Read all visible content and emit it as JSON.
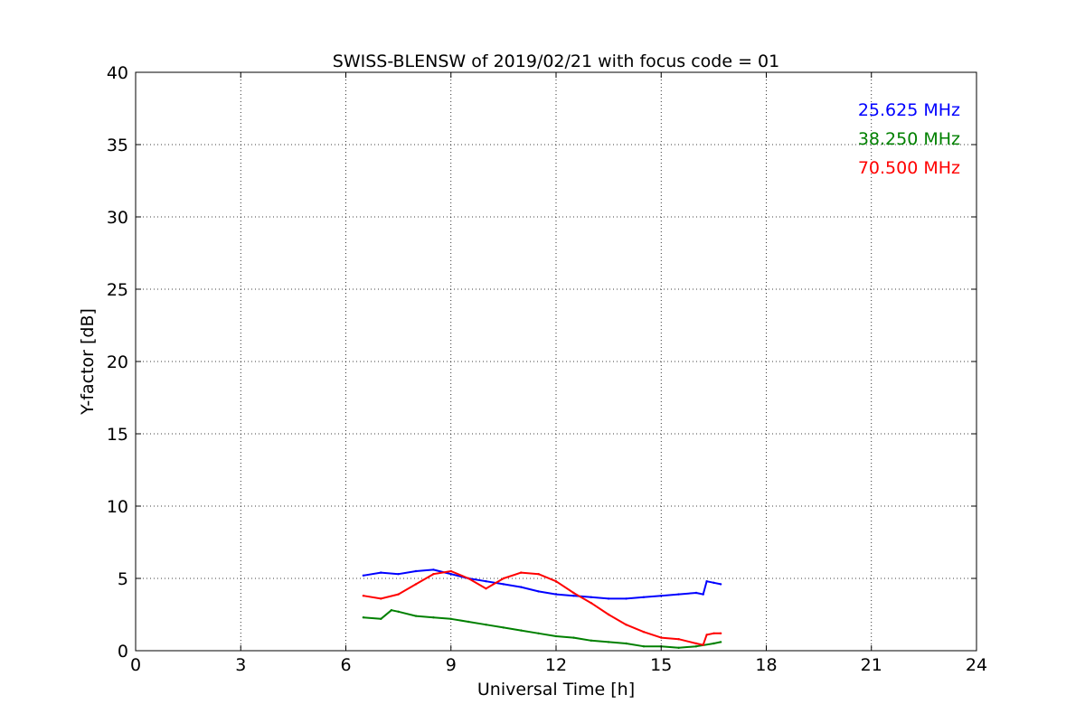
{
  "chart_data": {
    "type": "line",
    "title": "SWISS-BLENSW of 2019/02/21 with focus code = 01",
    "xlabel": "Universal Time [h]",
    "ylabel": "Y-factor [dB]",
    "xlim": [
      0,
      24
    ],
    "ylim": [
      0,
      40
    ],
    "xticks": [
      0,
      3,
      6,
      9,
      12,
      15,
      18,
      21,
      24
    ],
    "xtick_labels": [
      "0",
      "3",
      "6",
      "9",
      "12",
      "15",
      "18",
      "21",
      "24"
    ],
    "yticks": [
      0,
      5,
      10,
      15,
      20,
      25,
      30,
      35,
      40
    ],
    "ytick_labels": [
      "0",
      "5",
      "10",
      "15",
      "20",
      "25",
      "30",
      "35",
      "40"
    ],
    "grid": true,
    "legend_position": "top-right",
    "series": [
      {
        "name": "25.625 MHz",
        "color": "#0000ff",
        "x": [
          6.5,
          7.0,
          7.5,
          8.0,
          8.5,
          9.0,
          9.5,
          10.0,
          10.5,
          11.0,
          11.5,
          12.0,
          12.5,
          13.0,
          13.5,
          14.0,
          14.5,
          15.0,
          15.5,
          16.0,
          16.2,
          16.3,
          16.5,
          16.7
        ],
        "y": [
          5.2,
          5.4,
          5.3,
          5.5,
          5.6,
          5.3,
          5.0,
          4.8,
          4.6,
          4.4,
          4.1,
          3.9,
          3.8,
          3.7,
          3.6,
          3.6,
          3.7,
          3.8,
          3.9,
          4.0,
          3.9,
          4.8,
          4.7,
          4.6
        ]
      },
      {
        "name": "38.250 MHz",
        "color": "#008000",
        "x": [
          6.5,
          7.0,
          7.3,
          7.5,
          8.0,
          8.5,
          9.0,
          9.5,
          10.0,
          10.5,
          11.0,
          11.5,
          12.0,
          12.5,
          13.0,
          13.5,
          14.0,
          14.5,
          15.0,
          15.5,
          16.0,
          16.5,
          16.7
        ],
        "y": [
          2.3,
          2.2,
          2.8,
          2.7,
          2.4,
          2.3,
          2.2,
          2.0,
          1.8,
          1.6,
          1.4,
          1.2,
          1.0,
          0.9,
          0.7,
          0.6,
          0.5,
          0.3,
          0.3,
          0.2,
          0.3,
          0.5,
          0.6
        ]
      },
      {
        "name": "70.500 MHz",
        "color": "#ff0000",
        "x": [
          6.5,
          7.0,
          7.5,
          8.0,
          8.5,
          9.0,
          9.5,
          10.0,
          10.5,
          11.0,
          11.5,
          12.0,
          12.5,
          13.0,
          13.5,
          14.0,
          14.5,
          15.0,
          15.5,
          16.0,
          16.2,
          16.3,
          16.5,
          16.7
        ],
        "y": [
          3.8,
          3.6,
          3.9,
          4.6,
          5.3,
          5.5,
          5.0,
          4.3,
          5.0,
          5.4,
          5.3,
          4.8,
          4.0,
          3.3,
          2.5,
          1.8,
          1.3,
          0.9,
          0.8,
          0.5,
          0.4,
          1.1,
          1.2,
          1.2
        ]
      }
    ]
  }
}
